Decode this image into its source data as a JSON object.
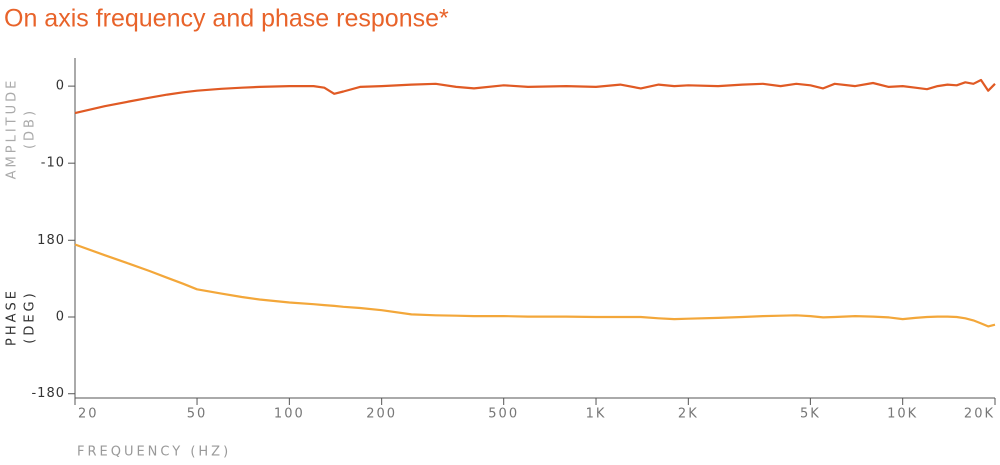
{
  "chart_data": [
    {
      "type": "line",
      "title": "On axis frequency and phase response*",
      "ylabel": [
        "AMPLITUDE",
        "(DB)"
      ],
      "label_color": "#aaaaaa",
      "log_x": true,
      "xlim": [
        20,
        20000
      ],
      "ylim": [
        -14,
        3
      ],
      "yticks": [
        0,
        -10
      ],
      "x": [
        20,
        25,
        30,
        35,
        40,
        45,
        50,
        60,
        70,
        80,
        100,
        120,
        130,
        140,
        150,
        170,
        200,
        250,
        300,
        350,
        400,
        500,
        600,
        800,
        1000,
        1200,
        1400,
        1600,
        1800,
        2000,
        2500,
        3000,
        3500,
        4000,
        4500,
        5000,
        5500,
        6000,
        7000,
        8000,
        9000,
        10000,
        11000,
        12000,
        13000,
        14000,
        15000,
        16000,
        17000,
        18000,
        19000,
        20000
      ],
      "series": [
        {
          "name": "Amplitude",
          "color": "#e05a24",
          "values": [
            -3.5,
            -2.6,
            -2.0,
            -1.5,
            -1.1,
            -0.8,
            -0.6,
            -0.35,
            -0.2,
            -0.1,
            0,
            0,
            -0.2,
            -1.0,
            -0.7,
            -0.1,
            0,
            0.2,
            0.3,
            -0.1,
            -0.3,
            0.1,
            -0.1,
            0,
            -0.1,
            0.2,
            -0.3,
            0.2,
            0,
            0.1,
            0,
            0.2,
            0.3,
            0,
            0.3,
            0.1,
            -0.3,
            0.3,
            0,
            0.4,
            -0.1,
            0,
            -0.2,
            -0.4,
            0,
            0.2,
            0.1,
            0.5,
            0.3,
            0.8,
            -0.6,
            0.3
          ]
        }
      ]
    },
    {
      "type": "line",
      "ylabel": [
        "PHASE",
        "(DEG)"
      ],
      "label_color": "#333333",
      "xlabel": "FREQUENCY (HZ)",
      "log_x": true,
      "xlim": [
        20,
        20000
      ],
      "ylim": [
        -190,
        190
      ],
      "yticks": [
        180,
        0,
        -180
      ],
      "xticks": [
        20,
        50,
        100,
        200,
        500,
        {
          "value": 1000,
          "label": "1K"
        },
        {
          "value": 2000,
          "label": "2K"
        },
        {
          "value": 5000,
          "label": "5K"
        },
        {
          "value": 10000,
          "label": "10K"
        },
        {
          "value": 20000,
          "label": "20K"
        }
      ],
      "x": [
        20,
        25,
        30,
        35,
        40,
        45,
        50,
        60,
        70,
        80,
        100,
        120,
        130,
        140,
        150,
        170,
        200,
        250,
        300,
        350,
        400,
        500,
        600,
        800,
        1000,
        1200,
        1400,
        1600,
        1800,
        2000,
        2500,
        3000,
        3500,
        4000,
        4500,
        5000,
        5500,
        6000,
        7000,
        8000,
        9000,
        10000,
        11000,
        12000,
        13000,
        14000,
        15000,
        16000,
        17000,
        18000,
        19000,
        20000
      ],
      "series": [
        {
          "name": "Phase",
          "color": "#f3a73a",
          "values": [
            170,
            145,
            125,
            108,
            92,
            78,
            65,
            55,
            47,
            41,
            34,
            30,
            28,
            26,
            24,
            21,
            16,
            6,
            4,
            3,
            2,
            2,
            1,
            1,
            0,
            0,
            0,
            -3,
            -5,
            -4,
            -2,
            0,
            2,
            3,
            4,
            2,
            -1,
            0,
            2,
            1,
            -1,
            -5,
            -2,
            0,
            1,
            1,
            0,
            -3,
            -8,
            -15,
            -22,
            -18
          ]
        }
      ]
    }
  ]
}
